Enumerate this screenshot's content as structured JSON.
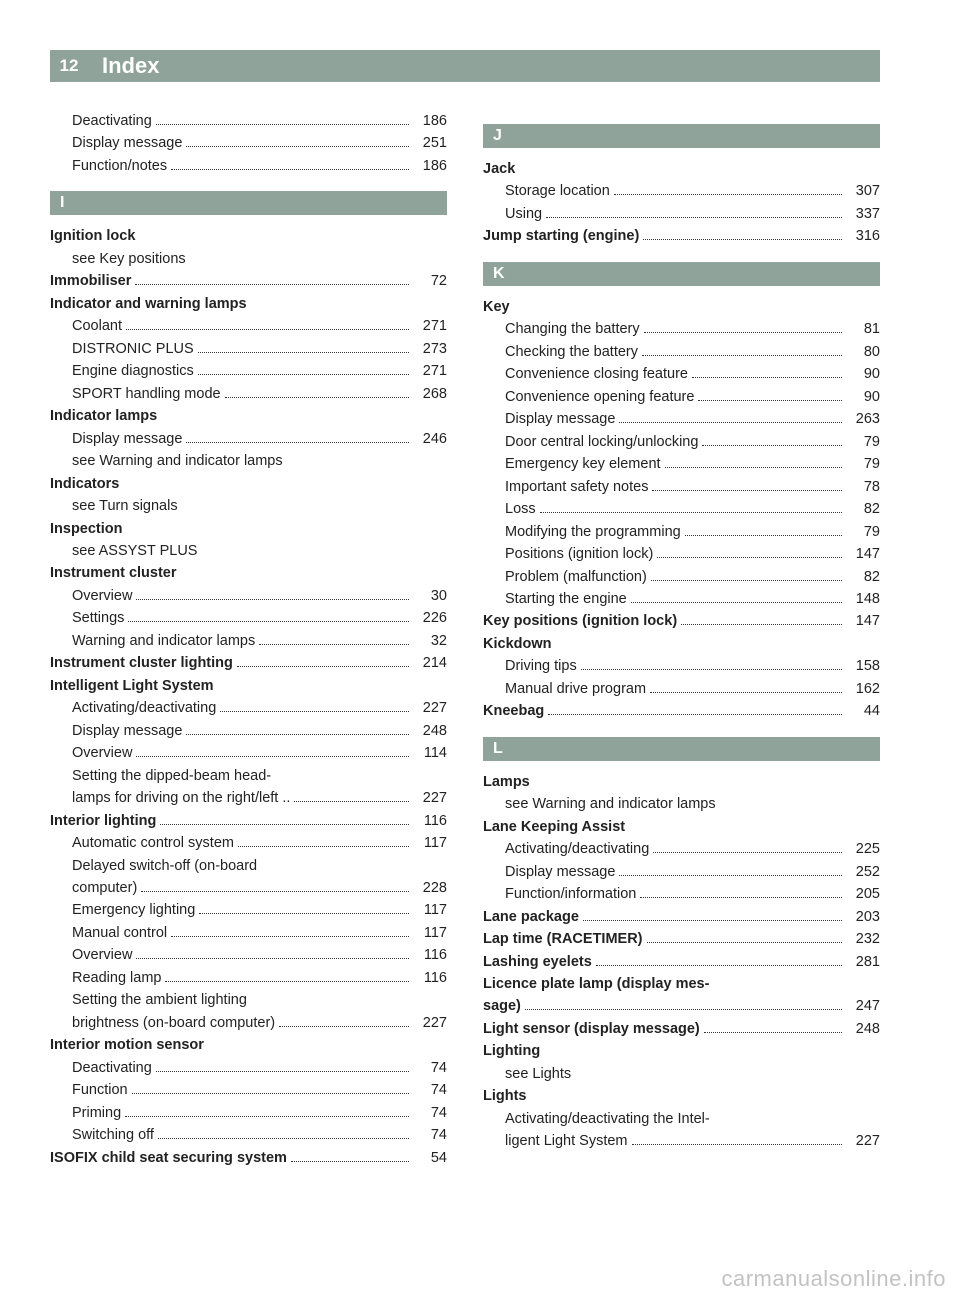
{
  "page_number": "12",
  "title": "Index",
  "watermark": "carmanualsonline.info",
  "left": {
    "pre": [
      {
        "label": "Deactivating",
        "page": "186",
        "sub": true
      },
      {
        "label": "Display message",
        "page": "251",
        "sub": true
      },
      {
        "label": "Function/notes",
        "page": "186",
        "sub": true
      }
    ],
    "I": {
      "letter": "I",
      "items": [
        {
          "label": "Ignition lock",
          "bold": true,
          "nopage": true
        },
        {
          "label": "see Key positions",
          "sub": true,
          "nopage": true
        },
        {
          "label": "Immobiliser",
          "bold": true,
          "page": "72"
        },
        {
          "label": "Indicator and warning lamps",
          "bold": true,
          "nopage": true
        },
        {
          "label": "Coolant",
          "sub": true,
          "page": "271"
        },
        {
          "label": "DISTRONIC PLUS",
          "sub": true,
          "page": "273"
        },
        {
          "label": "Engine diagnostics",
          "sub": true,
          "page": "271"
        },
        {
          "label": "SPORT handling mode",
          "sub": true,
          "page": "268"
        },
        {
          "label": "Indicator lamps",
          "bold": true,
          "nopage": true
        },
        {
          "label": "Display message",
          "sub": true,
          "page": "246"
        },
        {
          "label": "see Warning and indicator lamps",
          "sub": true,
          "nopage": true
        },
        {
          "label": "Indicators",
          "bold": true,
          "nopage": true
        },
        {
          "label": "see Turn signals",
          "sub": true,
          "nopage": true
        },
        {
          "label": "Inspection",
          "bold": true,
          "nopage": true
        },
        {
          "label": "see ASSYST PLUS",
          "sub": true,
          "nopage": true
        },
        {
          "label": "Instrument cluster",
          "bold": true,
          "nopage": true
        },
        {
          "label": "Overview",
          "sub": true,
          "page": "30"
        },
        {
          "label": "Settings",
          "sub": true,
          "page": "226"
        },
        {
          "label": "Warning and indicator lamps",
          "sub": true,
          "page": "32"
        },
        {
          "label": "Instrument cluster lighting",
          "bold": true,
          "page": "214"
        },
        {
          "label": "Intelligent Light System",
          "bold": true,
          "nopage": true
        },
        {
          "label": "Activating/deactivating",
          "sub": true,
          "page": "227"
        },
        {
          "label": "Display message",
          "sub": true,
          "page": "248"
        },
        {
          "label": "Overview",
          "sub": true,
          "page": "114"
        },
        {
          "multi": true,
          "sub": true,
          "line1": "Setting the dipped-beam head-",
          "line2": "lamps for driving on the right/left ..",
          "page": "227"
        },
        {
          "label": "Interior lighting",
          "bold": true,
          "page": "116"
        },
        {
          "label": "Automatic control system",
          "sub": true,
          "page": "117"
        },
        {
          "multi": true,
          "sub": true,
          "line1": "Delayed switch-off (on-board",
          "line2": "computer)",
          "page": "228"
        },
        {
          "label": "Emergency lighting",
          "sub": true,
          "page": "117"
        },
        {
          "label": "Manual control",
          "sub": true,
          "page": "117"
        },
        {
          "label": "Overview",
          "sub": true,
          "page": "116"
        },
        {
          "label": "Reading lamp",
          "sub": true,
          "page": "116"
        },
        {
          "multi": true,
          "sub": true,
          "line1": "Setting the ambient lighting",
          "line2": "brightness (on-board computer)",
          "page": "227"
        },
        {
          "label": "Interior motion sensor",
          "bold": true,
          "nopage": true
        },
        {
          "label": "Deactivating",
          "sub": true,
          "page": "74"
        },
        {
          "label": "Function",
          "sub": true,
          "page": "74"
        },
        {
          "label": "Priming",
          "sub": true,
          "page": "74"
        },
        {
          "label": "Switching off",
          "sub": true,
          "page": "74"
        },
        {
          "label": "ISOFIX child seat securing system",
          "bold": true,
          "page": "54"
        }
      ]
    }
  },
  "right": {
    "J": {
      "letter": "J",
      "items": [
        {
          "label": "Jack",
          "bold": true,
          "nopage": true
        },
        {
          "label": "Storage location",
          "sub": true,
          "page": "307"
        },
        {
          "label": "Using",
          "sub": true,
          "page": "337"
        },
        {
          "label": "Jump starting (engine)",
          "bold": true,
          "page": "316"
        }
      ]
    },
    "K": {
      "letter": "K",
      "items": [
        {
          "label": "Key",
          "bold": true,
          "nopage": true
        },
        {
          "label": "Changing the battery",
          "sub": true,
          "page": "81"
        },
        {
          "label": "Checking the battery",
          "sub": true,
          "page": "80"
        },
        {
          "label": "Convenience closing feature",
          "sub": true,
          "page": "90"
        },
        {
          "label": "Convenience opening feature",
          "sub": true,
          "page": "90"
        },
        {
          "label": "Display message",
          "sub": true,
          "page": "263"
        },
        {
          "label": "Door central locking/unlocking",
          "sub": true,
          "page": "79"
        },
        {
          "label": "Emergency key element",
          "sub": true,
          "page": "79"
        },
        {
          "label": "Important safety notes",
          "sub": true,
          "page": "78"
        },
        {
          "label": "Loss",
          "sub": true,
          "page": "82"
        },
        {
          "label": "Modifying the programming",
          "sub": true,
          "page": "79"
        },
        {
          "label": "Positions (ignition lock)",
          "sub": true,
          "page": "147"
        },
        {
          "label": "Problem (malfunction)",
          "sub": true,
          "page": "82"
        },
        {
          "label": "Starting the engine",
          "sub": true,
          "page": "148"
        },
        {
          "label": "Key positions (ignition lock)",
          "bold": true,
          "page": "147"
        },
        {
          "label": "Kickdown",
          "bold": true,
          "nopage": true
        },
        {
          "label": "Driving tips",
          "sub": true,
          "page": "158"
        },
        {
          "label": "Manual drive program",
          "sub": true,
          "page": "162"
        },
        {
          "label": "Kneebag",
          "bold": true,
          "page": "44"
        }
      ]
    },
    "L": {
      "letter": "L",
      "items": [
        {
          "label": "Lamps",
          "bold": true,
          "nopage": true
        },
        {
          "label": "see Warning and indicator lamps",
          "sub": true,
          "nopage": true
        },
        {
          "label": "Lane Keeping Assist",
          "bold": true,
          "nopage": true
        },
        {
          "label": "Activating/deactivating",
          "sub": true,
          "page": "225"
        },
        {
          "label": "Display message",
          "sub": true,
          "page": "252"
        },
        {
          "label": "Function/information",
          "sub": true,
          "page": "205"
        },
        {
          "label": "Lane package",
          "bold": true,
          "page": "203"
        },
        {
          "label": "Lap time (RACETIMER)",
          "bold": true,
          "page": "232"
        },
        {
          "label": "Lashing eyelets",
          "bold": true,
          "page": "281"
        },
        {
          "multi": true,
          "bold": true,
          "line1": "Licence plate lamp (display mes-",
          "line2": "sage)",
          "page": "247"
        },
        {
          "label": "Light sensor (display message)",
          "bold": true,
          "page": "248"
        },
        {
          "label": "Lighting",
          "bold": true,
          "nopage": true
        },
        {
          "label": "see Lights",
          "sub": true,
          "nopage": true
        },
        {
          "label": "Lights",
          "bold": true,
          "nopage": true
        },
        {
          "multi": true,
          "sub": true,
          "line1": "Activating/deactivating the Intel-",
          "line2": "ligent Light System",
          "page": "227"
        }
      ]
    }
  }
}
